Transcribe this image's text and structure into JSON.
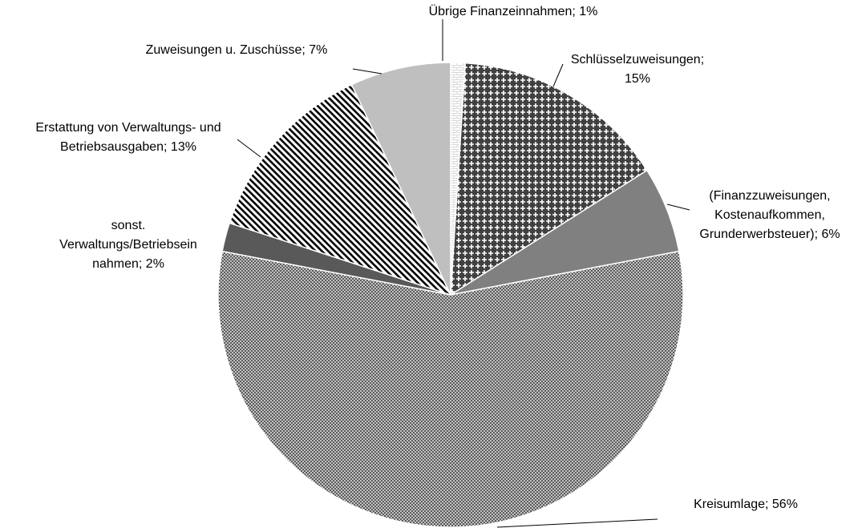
{
  "chart_data": {
    "type": "pie",
    "categories": [
      "Übrige Finanzeinnahmen",
      "Schlüsselzuweisungen",
      "(Finanzzuweisungen, Kostenaufkommen, Grunderwerbsteuer)",
      "Kreisumlage",
      "sonst. Verwaltungs/Betriebseinnahmen",
      "Erstattung von Verwaltungs- und Betriebsausgaben",
      "Zuweisungen u. Zuschüsse"
    ],
    "values": [
      1,
      15,
      6,
      56,
      2,
      13,
      7
    ],
    "value_labels": [
      [
        "Übrige Finanzeinnahmen; 1%"
      ],
      [
        "Schlüsselzuweisungen;",
        "15%"
      ],
      [
        "(Finanzzuweisungen,",
        "Kostenaufkommen,",
        "Grunderwerbsteuer); 6%"
      ],
      [
        "Kreisumlage; 56%"
      ],
      [
        "sonst.",
        "Verwaltungs/Betriebsein",
        "nahmen; 2%"
      ],
      [
        "Erstattung von Verwaltungs- und",
        "Betriebsausgaben; 13%"
      ],
      [
        "Zuweisungen u. Zuschüsse; 7%"
      ]
    ],
    "colors": [
      "#d9d9d9",
      "#404040",
      "#808080",
      "#595959",
      "#595959",
      "#000000",
      "#bfbfbf"
    ]
  }
}
